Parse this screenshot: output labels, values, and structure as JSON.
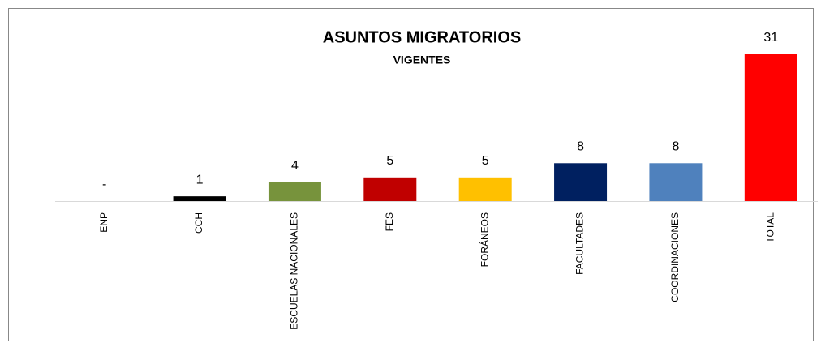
{
  "chart_data": {
    "type": "bar",
    "title": "ASUNTOS MIGRATORIOS",
    "subtitle": "VIGENTES",
    "categories": [
      "ENP",
      "CCH",
      "ESCUELAS NACIONALES",
      "FES",
      "FORÁNEOS",
      "FACULTADES",
      "COORDINACIONES",
      "TOTAL"
    ],
    "values": [
      0,
      1,
      4,
      5,
      5,
      8,
      8,
      31
    ],
    "value_labels": [
      "-",
      "1",
      "4",
      "5",
      "5",
      "8",
      "8",
      "31"
    ],
    "colors": [
      "#ffffff",
      "#000000",
      "#77933c",
      "#c00000",
      "#ffc000",
      "#002060",
      "#4f81bd",
      "#ff0000"
    ]
  }
}
